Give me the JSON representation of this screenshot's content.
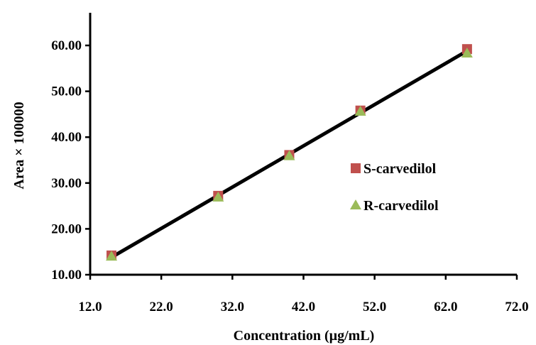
{
  "chart_data": {
    "type": "scatter",
    "xlabel": "Concentration (µg/mL)",
    "ylabel": "Area × 100000",
    "xlim": [
      12.0,
      72.0
    ],
    "ylim": [
      10.0,
      60.0
    ],
    "xticks": [
      "12.0",
      "22.0",
      "32.0",
      "42.0",
      "52.0",
      "62.0",
      "72.0"
    ],
    "yticks": [
      "10.00",
      "20.00",
      "30.00",
      "40.00",
      "50.00",
      "60.00"
    ],
    "grid": false,
    "legend_position": "right",
    "series": [
      {
        "name": "S-carvedilol",
        "marker": "square",
        "color": "#c0504d",
        "x": [
          15,
          30,
          40,
          50,
          65
        ],
        "y": [
          14.2,
          27.2,
          36.1,
          45.8,
          59.2
        ]
      },
      {
        "name": "R-carvedilol",
        "marker": "triangle",
        "color": "#9bbb59",
        "x": [
          15,
          30,
          40,
          50,
          65
        ],
        "y": [
          14.0,
          26.9,
          35.9,
          45.6,
          58.3
        ]
      }
    ],
    "fit_line": {
      "color": "#000000",
      "x": [
        15,
        65
      ],
      "y": [
        13.8,
        58.8
      ]
    }
  }
}
